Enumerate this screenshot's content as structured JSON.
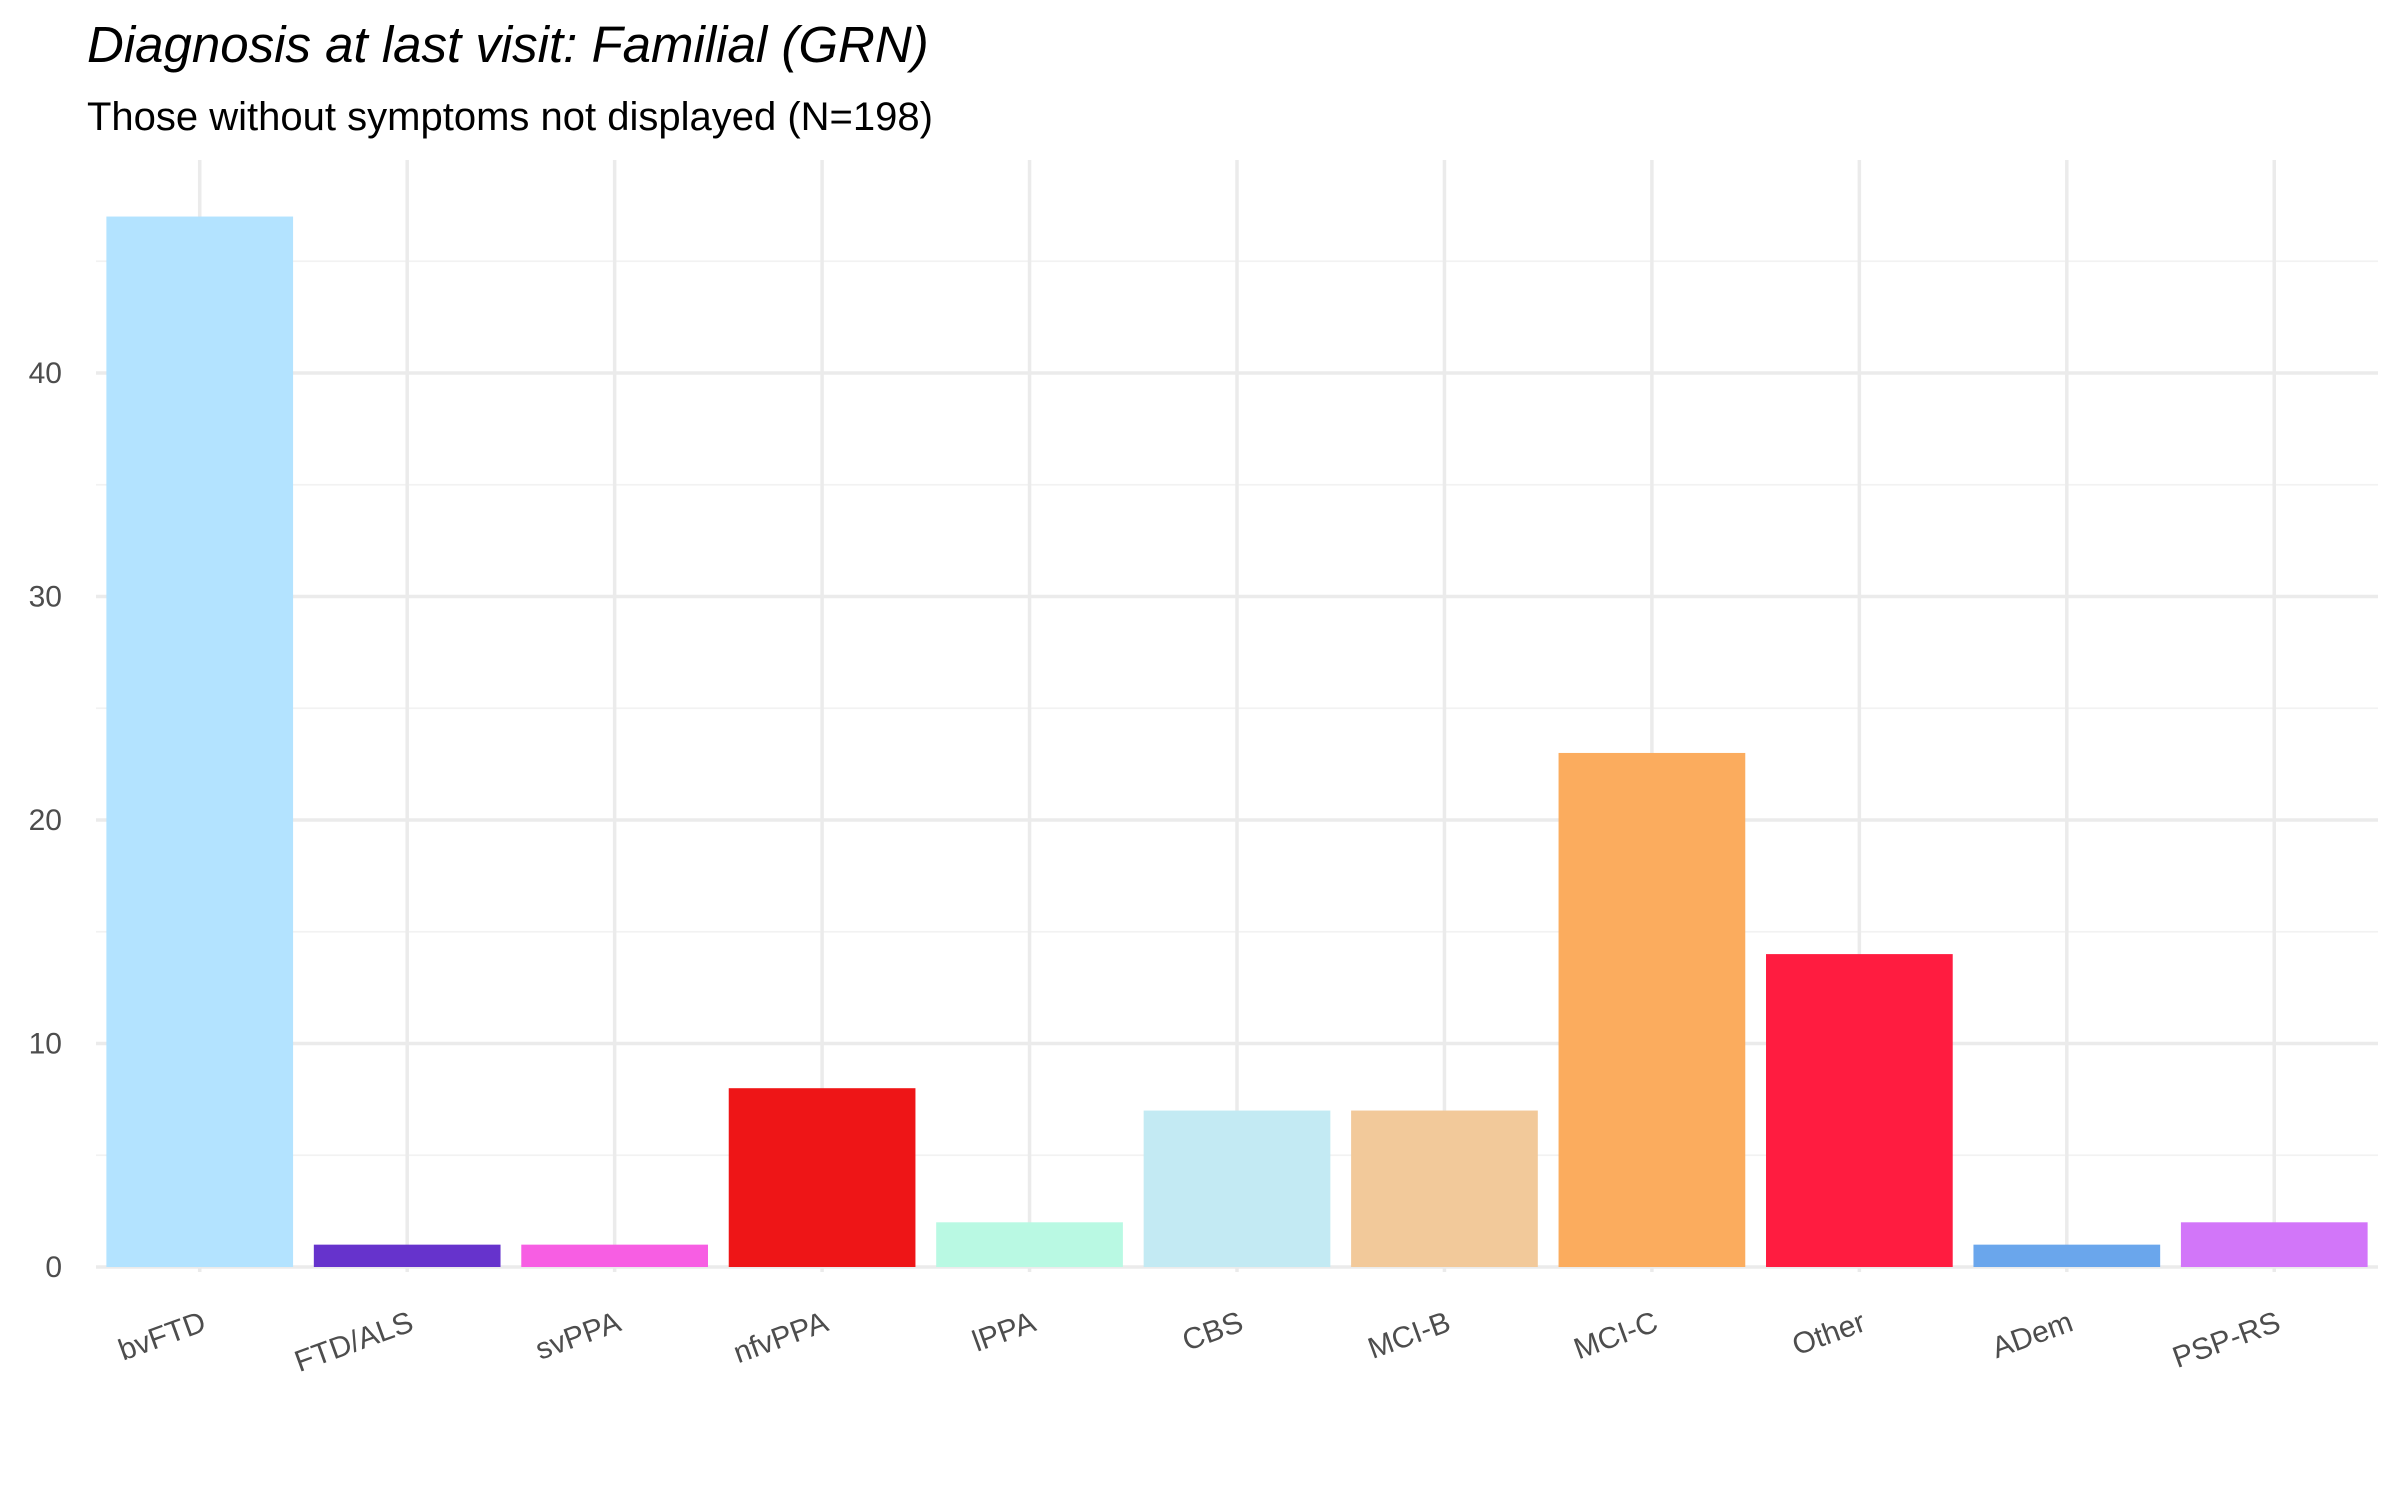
{
  "chart_data": {
    "type": "bar",
    "title": "Diagnosis at last visit: Familial (GRN)",
    "subtitle": "Those without symptoms not displayed (N=198)",
    "xlabel": "",
    "ylabel": "",
    "categories": [
      "bvFTD",
      "FTD/ALS",
      "svPPA",
      "nfvPPA",
      "lPPA",
      "CBS",
      "MCI-B",
      "MCI-C",
      "Other",
      "ADem",
      "PSP-RS"
    ],
    "values": [
      47,
      1,
      1,
      8,
      2,
      7,
      7,
      23,
      14,
      1,
      2
    ],
    "colors": [
      "#b3e3ff",
      "#6633cc",
      "#f75ee3",
      "#ee1517",
      "#b9f9e3",
      "#c3eaf3",
      "#f2c99a",
      "#fbac5e",
      "#ff1c40",
      "#6aa6ec",
      "#d276f9"
    ],
    "ylim": [
      0,
      49
    ],
    "yticks": [
      0,
      10,
      20,
      30,
      40
    ],
    "grid": true,
    "legend": "none"
  }
}
